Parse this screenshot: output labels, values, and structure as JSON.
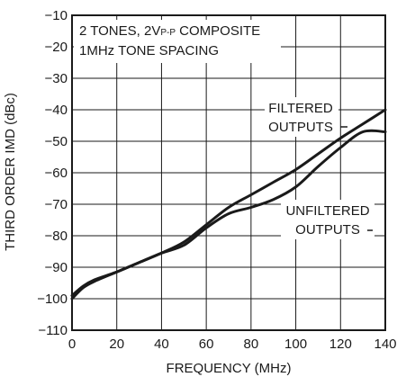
{
  "chart_data": {
    "type": "line",
    "xlabel": "FREQUENCY (MHz)",
    "ylabel": "THIRD ORDER IMD (dBc)",
    "xlim": [
      0,
      140
    ],
    "ylim": [
      -110,
      -10
    ],
    "x_ticks": [
      0,
      20,
      40,
      60,
      80,
      100,
      120,
      140
    ],
    "y_ticks": [
      -10,
      -20,
      -30,
      -40,
      -50,
      -60,
      -70,
      -80,
      -90,
      -100,
      -110
    ],
    "grid": true,
    "annotation": {
      "line1_a": "2 TONES, 2V",
      "line1_sub": "P-P",
      "line1_b": " COMPOSITE",
      "line2": "1MHz TONE SPACING"
    },
    "series": [
      {
        "name_line1": "FILTERED",
        "name_line2": "OUTPUTS",
        "x": [
          0,
          5,
          10,
          20,
          30,
          40,
          50,
          60,
          70,
          80,
          90,
          100,
          110,
          120,
          130,
          140
        ],
        "y": [
          -99,
          -96,
          -94,
          -91.5,
          -88.5,
          -85.5,
          -82,
          -76.5,
          -71,
          -67,
          -63,
          -59,
          -54,
          -49,
          -44.5,
          -40
        ]
      },
      {
        "name_line1": "UNFILTERED",
        "name_line2": "OUTPUTS",
        "x": [
          0,
          5,
          10,
          20,
          30,
          40,
          50,
          60,
          70,
          80,
          90,
          100,
          110,
          120,
          130,
          140
        ],
        "y": [
          -100,
          -96.5,
          -94.5,
          -91.5,
          -88.5,
          -85.5,
          -83,
          -77.5,
          -73,
          -71,
          -68.5,
          -64.5,
          -58,
          -52,
          -47,
          -47
        ]
      }
    ]
  }
}
